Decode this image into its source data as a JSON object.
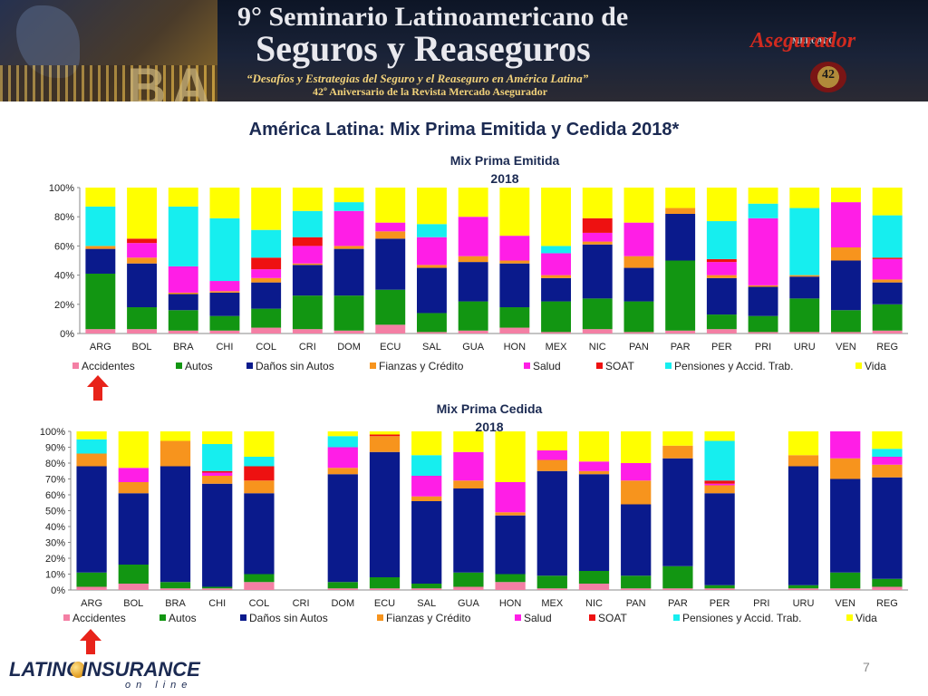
{
  "header": {
    "line1": "9° Seminario Latinoamericano de",
    "line2": "Seguros y Reaseguros",
    "line3": "“Desafíos y Estrategias del Seguro y el Reaseguro en América Latina”",
    "line4": "42º Aniversario de la Revista Mercado Asegurador",
    "ba": "BA",
    "brand_small": "MERCADO",
    "brand_big": "Asegurador",
    "seal_number": "42"
  },
  "slide": {
    "title": "América Latina: Mix Prima Emitida y Cedida 2018*",
    "page_number": "7"
  },
  "footer": {
    "logo_left": "LATINO",
    "logo_right": "INSURANCE",
    "logo_sub": "on line"
  },
  "colors": {
    "Accidentes": "#f47fa4",
    "Autos": "#129612",
    "Daños sin Autos": "#0a1a8c",
    "Fianzas y Crédito": "#f7941d",
    "Salud": "#ff1ee6",
    "SOAT": "#ee1111",
    "Pensiones y Accid. Trab.": "#16eeef",
    "Vida": "#ffff00",
    "arrow": "#e8231a"
  },
  "chart_data": [
    {
      "type": "bar",
      "stacked": "percent",
      "title": "Mix Prima Emitida 2018",
      "categories": [
        "ARG",
        "BOL",
        "BRA",
        "CHI",
        "COL",
        "CRI",
        "DOM",
        "ECU",
        "SAL",
        "GUA",
        "HON",
        "MEX",
        "NIC",
        "PAN",
        "PAR",
        "PER",
        "PRI",
        "URU",
        "VEN",
        "REG"
      ],
      "yticks": [
        "0%",
        "20%",
        "40%",
        "60%",
        "80%",
        "100%"
      ],
      "ylim": [
        0,
        100
      ],
      "legend_position": "bottom",
      "series": [
        {
          "name": "Accidentes",
          "values": [
            3,
            3,
            2,
            2,
            4,
            3,
            2,
            6,
            1,
            2,
            4,
            1,
            3,
            1,
            2,
            3,
            1,
            1,
            1,
            2
          ]
        },
        {
          "name": "Autos",
          "values": [
            38,
            15,
            14,
            10,
            13,
            23,
            24,
            24,
            13,
            20,
            14,
            21,
            21,
            21,
            48,
            10,
            11,
            23,
            15,
            18
          ]
        },
        {
          "name": "Daños sin Autos",
          "values": [
            17,
            30,
            11,
            16,
            18,
            21,
            32,
            35,
            31,
            27,
            30,
            16,
            37,
            23,
            32,
            25,
            20,
            15,
            34,
            15
          ]
        },
        {
          "name": "Fianzas y Crédito",
          "values": [
            2,
            4,
            1,
            1,
            3,
            1,
            2,
            5,
            2,
            4,
            2,
            2,
            2,
            8,
            4,
            2,
            1,
            1,
            9,
            2
          ]
        },
        {
          "name": "Salud",
          "values": [
            0,
            10,
            18,
            7,
            6,
            12,
            24,
            6,
            19,
            27,
            17,
            15,
            6,
            23,
            0,
            9,
            46,
            0,
            31,
            14
          ]
        },
        {
          "name": "SOAT",
          "values": [
            0,
            3,
            0,
            0,
            8,
            6,
            0,
            0,
            0,
            0,
            0,
            0,
            10,
            0,
            0,
            2,
            0,
            0,
            0,
            1
          ]
        },
        {
          "name": "Pensiones y Accid. Trab.",
          "values": [
            27,
            0,
            41,
            43,
            19,
            18,
            6,
            0,
            9,
            0,
            0,
            5,
            0,
            0,
            0,
            26,
            10,
            46,
            0,
            29
          ]
        },
        {
          "name": "Vida",
          "values": [
            13,
            35,
            13,
            21,
            29,
            16,
            10,
            24,
            25,
            20,
            33,
            40,
            21,
            24,
            14,
            23,
            11,
            14,
            10,
            19
          ]
        }
      ]
    },
    {
      "type": "bar",
      "stacked": "percent",
      "title": "Mix Prima Cedida 2018",
      "categories": [
        "ARG",
        "BOL",
        "BRA",
        "CHI",
        "COL",
        "CRI",
        "DOM",
        "ECU",
        "SAL",
        "GUA",
        "HON",
        "MEX",
        "NIC",
        "PAN",
        "PAR",
        "PER",
        "PRI",
        "URU",
        "VEN",
        "REG"
      ],
      "yticks": [
        "0%",
        "10%",
        "20%",
        "30%",
        "40%",
        "50%",
        "60%",
        "70%",
        "80%",
        "90%",
        "100%"
      ],
      "ylim": [
        0,
        100
      ],
      "legend_position": "bottom",
      "series": [
        {
          "name": "Accidentes",
          "values": [
            2,
            4,
            1,
            1,
            5,
            0,
            1,
            1,
            1,
            2,
            5,
            1,
            4,
            1,
            1,
            1,
            0,
            1,
            1,
            2
          ]
        },
        {
          "name": "Autos",
          "values": [
            9,
            12,
            4,
            1,
            5,
            0,
            4,
            7,
            3,
            9,
            5,
            8,
            8,
            8,
            14,
            2,
            0,
            2,
            10,
            5
          ]
        },
        {
          "name": "Daños sin Autos",
          "values": [
            67,
            45,
            73,
            65,
            51,
            0,
            68,
            79,
            52,
            53,
            37,
            66,
            61,
            45,
            68,
            58,
            0,
            75,
            59,
            64
          ]
        },
        {
          "name": "Fianzas y Crédito",
          "values": [
            8,
            7,
            16,
            5,
            8,
            0,
            4,
            10,
            3,
            5,
            2,
            7,
            2,
            15,
            8,
            5,
            0,
            7,
            13,
            8
          ]
        },
        {
          "name": "Salud",
          "values": [
            0,
            9,
            0,
            2,
            0,
            0,
            13,
            0,
            13,
            18,
            19,
            6,
            6,
            11,
            0,
            1,
            0,
            0,
            17,
            5
          ]
        },
        {
          "name": "SOAT",
          "values": [
            0,
            0,
            0,
            1,
            9,
            0,
            0,
            1,
            0,
            0,
            0,
            0,
            0,
            0,
            0,
            2,
            0,
            0,
            0,
            0
          ]
        },
        {
          "name": "Pensiones y Accid. Trab.",
          "values": [
            9,
            0,
            0,
            17,
            6,
            0,
            7,
            0,
            13,
            0,
            0,
            0,
            0,
            0,
            0,
            25,
            0,
            0,
            0,
            5
          ]
        },
        {
          "name": "Vida",
          "values": [
            5,
            23,
            6,
            8,
            16,
            0,
            3,
            2,
            15,
            13,
            32,
            12,
            19,
            20,
            9,
            6,
            0,
            15,
            0,
            11
          ]
        }
      ]
    }
  ]
}
